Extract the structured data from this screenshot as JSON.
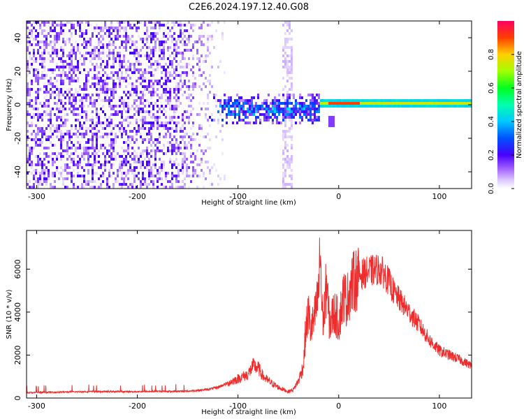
{
  "title": "C2E6.2024.197.12.40.G08",
  "chart_data": [
    {
      "type": "heatmap",
      "xlabel": "Height of straight line (km)",
      "ylabel": "Frequency (Hz)",
      "xlim": [
        -310,
        132
      ],
      "ylim": [
        -50,
        50
      ],
      "x_ticks": [
        -300,
        -200,
        -100,
        0,
        100
      ],
      "y_ticks": [
        -40,
        -20,
        0,
        20,
        40
      ],
      "colorbar": {
        "label": "Normalized spectral amplitude",
        "range": [
          0.0,
          1.0
        ],
        "ticks": [
          0.0,
          0.2,
          0.4,
          0.6,
          0.8
        ],
        "colors": [
          "#ffffff",
          "#d9c2ff",
          "#b07cff",
          "#7f00ff",
          "#1a00ff",
          "#00a8ff",
          "#00ffc8",
          "#00ff30",
          "#b4ff00",
          "#ffd000",
          "#ff3000",
          "#ff0060"
        ]
      },
      "features": [
        {
          "name": "noise",
          "x_range": [
            -310,
            -110
          ],
          "freq_range": [
            -50,
            50
          ],
          "amplitude": 0.05
        },
        {
          "name": "vertical_streak",
          "x": -52,
          "freq_range": [
            -50,
            50
          ],
          "amplitude": 0.02
        },
        {
          "name": "transition_blob",
          "x_range": [
            -130,
            -20
          ],
          "freq_center": -4,
          "freq_halfwidth": 8,
          "amplitude": 0.2
        },
        {
          "name": "stable_line",
          "x_range": [
            -20,
            132
          ],
          "freq": 0,
          "amplitude": 0.6
        },
        {
          "name": "peak_segment",
          "x_range": [
            -12,
            20
          ],
          "freq": 0,
          "amplitude": 0.9
        },
        {
          "name": "spur",
          "x": -8,
          "freq": -11,
          "amplitude": 0.1
        }
      ]
    },
    {
      "type": "line",
      "xlabel": "Height of straight line (km)",
      "ylabel": "SNR (10 * v/v)",
      "xlim": [
        -310,
        132
      ],
      "ylim": [
        0,
        7800
      ],
      "x_ticks": [
        -300,
        -200,
        -100,
        0,
        100
      ],
      "y_ticks": [
        0,
        2000,
        4000,
        6000
      ],
      "color": "#ee2c2c",
      "series": [
        {
          "x": [
            -310,
            -250,
            -200,
            -150,
            -130,
            -120,
            -110,
            -100,
            -90,
            -85,
            -80,
            -75,
            -70,
            -60,
            -50,
            -45,
            -40,
            -35,
            -33,
            -30,
            -28,
            -25,
            -22,
            -20,
            -18,
            -17,
            -15,
            -12,
            -10,
            -8,
            -5,
            -2,
            0,
            5,
            8,
            12,
            15,
            20,
            25,
            30,
            40,
            45,
            50,
            55,
            60,
            70,
            80,
            90,
            100,
            110,
            120,
            132
          ],
          "y": [
            250,
            300,
            300,
            320,
            400,
            500,
            700,
            900,
            1100,
            1500,
            1400,
            1000,
            800,
            500,
            300,
            400,
            800,
            1500,
            3000,
            4000,
            3200,
            3500,
            4200,
            5000,
            7000,
            4500,
            3500,
            5500,
            3800,
            3500,
            4000,
            3800,
            3500,
            4800,
            4500,
            5200,
            5400,
            5700,
            5800,
            5900,
            6000,
            5800,
            5400,
            4900,
            4600,
            4000,
            3400,
            2700,
            2200,
            2000,
            1800,
            1500
          ]
        }
      ]
    }
  ]
}
